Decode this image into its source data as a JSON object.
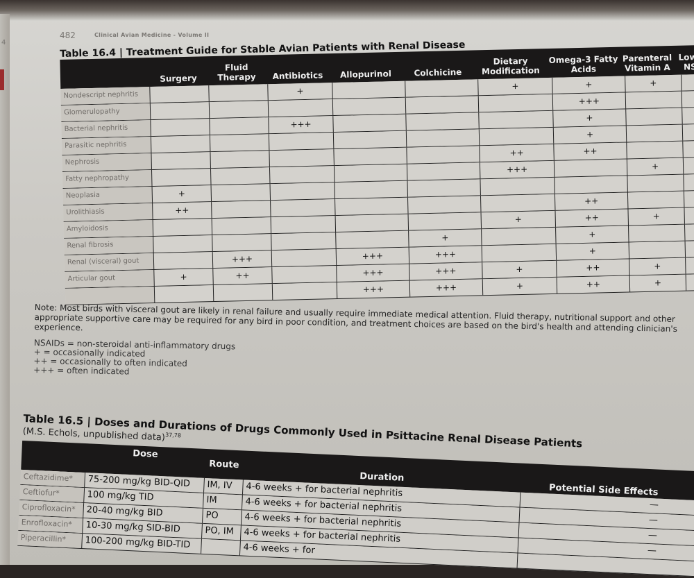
{
  "page": {
    "number": "482",
    "running_head": "Clinical Avian Medicine - Volume II",
    "side_number": "4"
  },
  "table_16_4": {
    "title": "Table 16.4 | Treatment Guide for Stable Avian Patients with Renal Disease",
    "columns": [
      "",
      "Surgery",
      "Fluid Therapy",
      "Antibiotics",
      "Allopurinol",
      "Colchicine",
      "Dietary Modification",
      "Omega-3 Fatty Acids",
      "Parenteral Vitamin A",
      "Low-dose NSAIDs"
    ],
    "rows": [
      {
        "label": "Nondescript nephritis",
        "cells": [
          "",
          "",
          "+",
          "",
          "",
          "+",
          "+",
          "+",
          ""
        ]
      },
      {
        "label": "Glomerulopathy",
        "cells": [
          "",
          "",
          "",
          "",
          "",
          "",
          "+++",
          "",
          "+"
        ]
      },
      {
        "label": "Bacterial nephritis",
        "cells": [
          "",
          "",
          "+++",
          "",
          "",
          "",
          "+",
          "",
          "+"
        ]
      },
      {
        "label": "Parasitic nephritis",
        "cells": [
          "",
          "",
          "",
          "",
          "",
          "",
          "+",
          "",
          "+"
        ]
      },
      {
        "label": "Nephrosis",
        "cells": [
          "",
          "",
          "",
          "",
          "",
          "++",
          "++",
          "",
          "+"
        ]
      },
      {
        "label": "Fatty nephropathy",
        "cells": [
          "",
          "",
          "",
          "",
          "",
          "+++",
          "",
          "+",
          ""
        ]
      },
      {
        "label": "Neoplasia",
        "cells": [
          "+",
          "",
          "",
          "",
          "",
          "",
          "",
          "",
          ""
        ]
      },
      {
        "label": "Urolithiasis",
        "cells": [
          "++",
          "",
          "",
          "",
          "",
          "",
          "++",
          "",
          ""
        ]
      },
      {
        "label": "Amyloidosis",
        "cells": [
          "",
          "",
          "",
          "",
          "",
          "+",
          "++",
          "+",
          ""
        ]
      },
      {
        "label": "Renal fibrosis",
        "cells": [
          "",
          "",
          "",
          "",
          "+",
          "",
          "+",
          "",
          ""
        ]
      },
      {
        "label": "Renal (visceral) gout",
        "cells": [
          "",
          "+++",
          "",
          "+++",
          "+++",
          "",
          "+",
          "",
          ""
        ]
      },
      {
        "label": "Articular gout",
        "cells": [
          "+",
          "++",
          "",
          "+++",
          "+++",
          "+",
          "++",
          "+",
          ""
        ]
      },
      {
        "label": "",
        "cells": [
          "",
          "",
          "",
          "+++",
          "+++",
          "+",
          "++",
          "+",
          ""
        ]
      }
    ]
  },
  "note": {
    "text": "Note: Most birds with visceral gout are likely in renal failure and usually require immediate medical attention. Fluid therapy, nutritional support and other appropriate supportive care may be required for any bird in poor condition, and treatment choices are based on the bird's health and attending clinician's experience.",
    "legend": [
      "NSAIDs = non-steroidal anti-inflammatory drugs",
      "+ = occasionally indicated",
      "++ = occasionally to often indicated",
      "+++ = often indicated"
    ]
  },
  "table_16_5": {
    "title": "Table 16.5 | Doses and Durations of Drugs Commonly Used in Psittacine Renal Disease Patients",
    "subtitle": "(M.S. Echols, unpublished data)",
    "subtitle_refs": "37,78",
    "columns": [
      "",
      "Dose",
      "Route",
      "Duration",
      "Potential Side Effects"
    ],
    "rows": [
      {
        "drug": "Ceftazidime*",
        "dose": "75-200 mg/kg BID-QID",
        "route": "IM, IV",
        "duration": "4-6 weeks + for bacterial nephritis",
        "effects": "—"
      },
      {
        "drug": "Ceftiofur*",
        "dose": "100 mg/kg TID",
        "route": "IM",
        "duration": "4-6 weeks + for bacterial nephritis",
        "effects": "—"
      },
      {
        "drug": "Ciprofloxacin*",
        "dose": "20-40 mg/kg BID",
        "route": "PO",
        "duration": "4-6 weeks + for bacterial nephritis",
        "effects": "—"
      },
      {
        "drug": "Enrofloxacin*",
        "dose": "10-30 mg/kg SID-BID",
        "route": "PO, IM",
        "duration": "4-6 weeks + for bacterial nephritis",
        "effects": "—"
      },
      {
        "drug": "Piperacillin*",
        "dose": "100-200 mg/kg BID-TID",
        "route": "",
        "duration": "4-6 weeks + for",
        "effects": ""
      }
    ]
  }
}
